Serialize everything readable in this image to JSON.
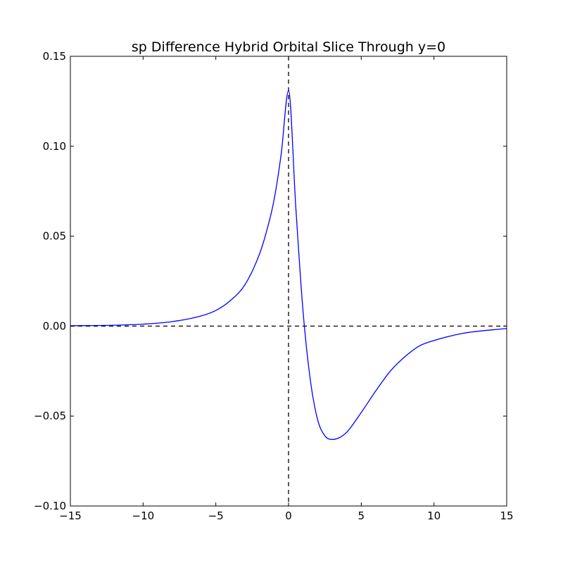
{
  "chart_data": {
    "type": "line",
    "title": "sp Difference Hybrid Orbital Slice Through y=0",
    "xlabel": "",
    "ylabel": "",
    "xlim": [
      -15,
      15
    ],
    "ylim": [
      -0.1,
      0.15
    ],
    "x_ticks": [
      -15,
      -10,
      -5,
      0,
      5,
      10,
      15
    ],
    "x_tick_labels": [
      "−15",
      "−10",
      "−5",
      "0",
      "5",
      "10",
      "15"
    ],
    "y_ticks": [
      -0.1,
      -0.05,
      0.0,
      0.05,
      0.1,
      0.15
    ],
    "y_tick_labels": [
      "−0.10",
      "−0.05",
      "0.00",
      "0.05",
      "0.10",
      "0.15"
    ],
    "grid": false,
    "reference_lines": [
      {
        "orientation": "horizontal",
        "value": 0,
        "style": "dashed",
        "color": "#000000"
      },
      {
        "orientation": "vertical",
        "value": 0,
        "style": "dashed",
        "color": "#000000"
      }
    ],
    "series": [
      {
        "color": "#0000ff",
        "style": "solid",
        "x": [
          -15,
          -12,
          -10,
          -8,
          -6,
          -5,
          -4,
          -3,
          -2,
          -1.5,
          -1,
          -0.5,
          0,
          0.5,
          1,
          1.5,
          2,
          2.5,
          3,
          3.5,
          4,
          5,
          6,
          7,
          8,
          9,
          10,
          12,
          15
        ],
        "y": [
          0.0002,
          0.0005,
          0.0011,
          0.0025,
          0.0057,
          0.0087,
          0.0142,
          0.023,
          0.04,
          0.053,
          0.07,
          0.096,
          0.131,
          0.066,
          0.008,
          -0.03,
          -0.052,
          -0.061,
          -0.063,
          -0.062,
          -0.059,
          -0.048,
          -0.036,
          -0.025,
          -0.017,
          -0.011,
          -0.008,
          -0.004,
          -0.0013
        ]
      }
    ]
  }
}
